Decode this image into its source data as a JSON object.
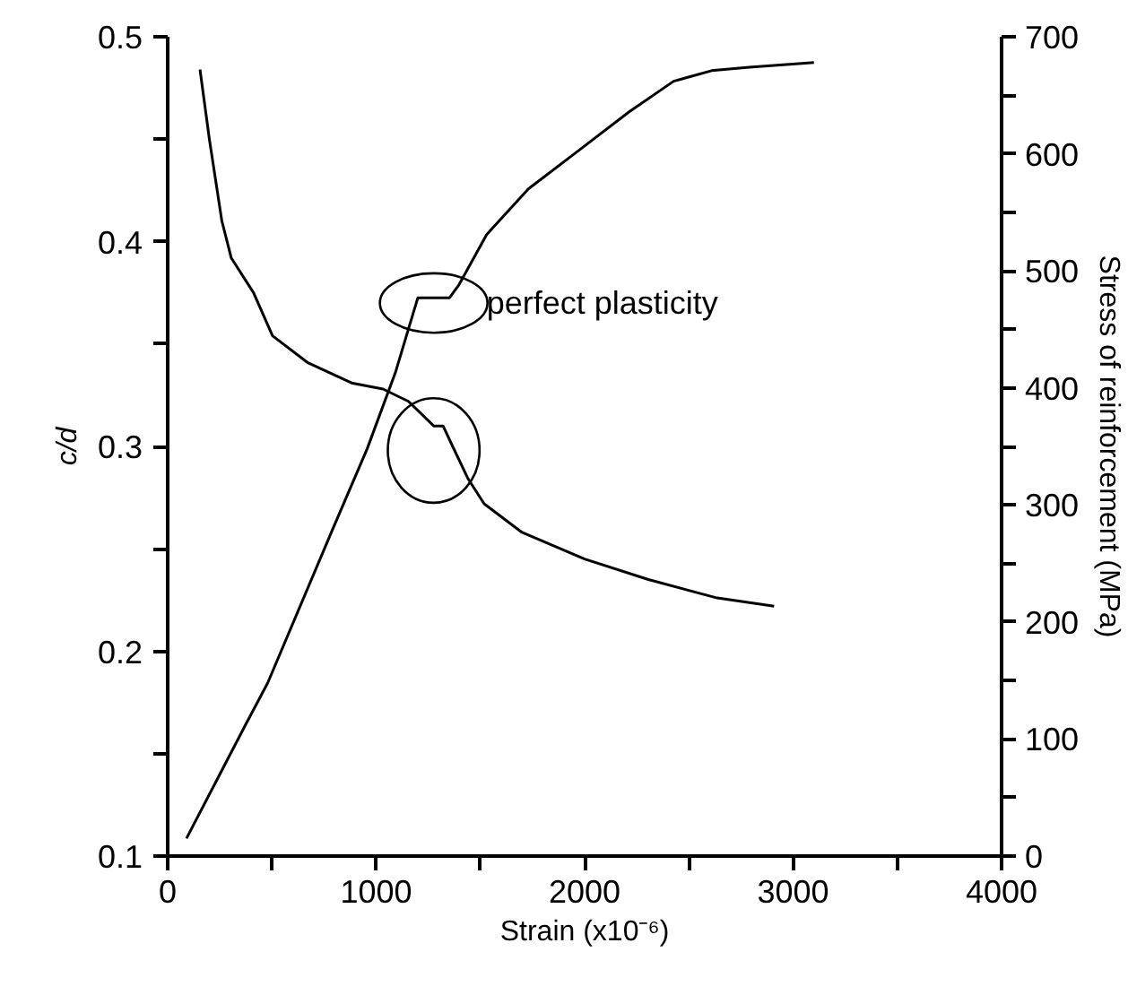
{
  "chart_data": {
    "type": "line",
    "xlabel": "Strain (x10⁻⁶)",
    "ylabel": "c/d",
    "y2label": "Stress of reinforcement (MPa)",
    "xlim": [
      0,
      4000
    ],
    "xticks": [
      0,
      {
        "value": 500,
        "label": null
      },
      1000,
      {
        "value": 1500,
        "label": null
      },
      2000,
      {
        "value": 2500,
        "label": null
      },
      3000,
      {
        "value": 3500,
        "label": null
      },
      4000
    ],
    "ylim": [
      0.1,
      0.5
    ],
    "yticks": [
      0.1,
      {
        "value": 0.15,
        "label": null
      },
      0.2,
      {
        "value": 0.25,
        "label": null
      },
      0.3,
      {
        "value": 0.35,
        "label": null
      },
      0.4,
      {
        "value": 0.45,
        "label": null
      },
      0.5
    ],
    "y2lim": [
      0,
      700
    ],
    "y2ticks": [
      0,
      {
        "value": 50,
        "label": null
      },
      100,
      {
        "value": 150,
        "label": null
      },
      200,
      {
        "value": 250,
        "label": null
      },
      300,
      {
        "value": 350,
        "label": null
      },
      400,
      {
        "value": 450,
        "label": null
      },
      500,
      {
        "value": 550,
        "label": null
      },
      600,
      {
        "value": 650,
        "label": null
      },
      700
    ],
    "grid": false,
    "marker": "none",
    "line_style": "solid",
    "series": [
      {
        "color": "#000000",
        "x": [
          155,
          200,
          260,
          305,
          412,
          503,
          670,
          882,
          1033,
          1155,
          1276,
          1321,
          1367,
          1442,
          1518,
          1700,
          2000,
          2306,
          2636,
          2909
        ],
        "values": [
          0.484,
          0.45,
          0.41,
          0.392,
          0.375,
          0.354,
          0.341,
          0.331,
          0.328,
          0.322,
          0.31,
          0.31,
          0.3,
          0.284,
          0.272,
          0.258,
          0.245,
          0.235,
          0.226,
          0.222
        ]
      },
      {
        "color": "#000000",
        "axis": "y2",
        "x": [
          90,
          373,
          480,
          791,
          957,
          1094,
          1200,
          1352,
          1397,
          1530,
          1730,
          1973,
          2215,
          2427,
          2609,
          2790,
          3100
        ],
        "values": [
          15,
          112,
          148,
          279,
          348,
          414,
          477,
          477,
          488,
          531,
          570,
          603,
          636,
          662,
          671,
          674,
          678
        ]
      }
    ],
    "annotations": [
      "perfect plasticity"
    ]
  }
}
